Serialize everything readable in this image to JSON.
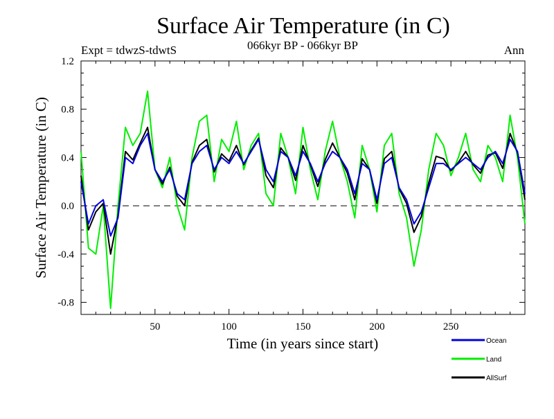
{
  "chart_data": {
    "type": "line",
    "title": "Surface Air Temperature (in C)",
    "left_label": "Expt = tdwzS-tdwtS",
    "center_label": "066kyr BP - 066kyr BP",
    "right_label": "Ann",
    "xlabel": "Time (in years since start)",
    "ylabel": "Surface Air Temperature (in C)",
    "xlim": [
      0,
      300
    ],
    "ylim": [
      -0.9,
      1.2
    ],
    "xticks": [
      50,
      100,
      150,
      200,
      250
    ],
    "xtick_labels": [
      "50",
      "100",
      "150",
      "200",
      "250"
    ],
    "yticks": [
      1.2,
      0.8,
      0.4,
      0.0,
      -0.4,
      -0.8
    ],
    "ytick_labels": [
      "1.2",
      "0.8",
      "0.4",
      "0.0",
      "-0.4",
      "-0.8"
    ],
    "zero_line": true,
    "series": [
      {
        "name": "Land",
        "color": "#00ee00",
        "x": [
          0,
          5,
          10,
          15,
          20,
          25,
          30,
          35,
          40,
          45,
          50,
          55,
          60,
          65,
          70,
          75,
          80,
          85,
          90,
          95,
          100,
          105,
          110,
          115,
          120,
          125,
          130,
          135,
          140,
          145,
          150,
          155,
          160,
          165,
          170,
          175,
          180,
          185,
          190,
          195,
          200,
          205,
          210,
          215,
          220,
          225,
          230,
          235,
          240,
          245,
          250,
          255,
          260,
          265,
          270,
          275,
          280,
          285,
          290,
          295,
          300
        ],
        "values": [
          0.45,
          -0.35,
          -0.4,
          0.0,
          -0.85,
          0.0,
          0.65,
          0.5,
          0.6,
          0.95,
          0.3,
          0.15,
          0.4,
          0.0,
          -0.2,
          0.4,
          0.7,
          0.75,
          0.2,
          0.55,
          0.45,
          0.7,
          0.3,
          0.5,
          0.6,
          0.1,
          0.0,
          0.6,
          0.4,
          0.1,
          0.65,
          0.3,
          0.05,
          0.45,
          0.7,
          0.4,
          0.2,
          -0.1,
          0.5,
          0.3,
          -0.05,
          0.5,
          0.6,
          0.1,
          -0.1,
          -0.5,
          -0.2,
          0.3,
          0.6,
          0.5,
          0.25,
          0.4,
          0.6,
          0.3,
          0.2,
          0.5,
          0.4,
          0.2,
          0.75,
          0.4,
          -0.15
        ]
      },
      {
        "name": "Ocean",
        "color": "#0000dd",
        "x": [
          0,
          5,
          10,
          15,
          20,
          25,
          30,
          35,
          40,
          45,
          50,
          55,
          60,
          65,
          70,
          75,
          80,
          85,
          90,
          95,
          100,
          105,
          110,
          115,
          120,
          125,
          130,
          135,
          140,
          145,
          150,
          155,
          160,
          165,
          170,
          175,
          180,
          185,
          190,
          195,
          200,
          205,
          210,
          215,
          220,
          225,
          230,
          235,
          240,
          245,
          250,
          255,
          260,
          265,
          270,
          275,
          280,
          285,
          290,
          295,
          300
        ],
        "values": [
          0.2,
          -0.15,
          0.0,
          0.05,
          -0.25,
          -0.1,
          0.4,
          0.35,
          0.5,
          0.6,
          0.3,
          0.2,
          0.3,
          0.1,
          0.05,
          0.35,
          0.45,
          0.5,
          0.3,
          0.4,
          0.35,
          0.45,
          0.35,
          0.45,
          0.55,
          0.3,
          0.2,
          0.45,
          0.4,
          0.25,
          0.45,
          0.35,
          0.2,
          0.35,
          0.45,
          0.4,
          0.3,
          0.1,
          0.35,
          0.3,
          0.05,
          0.35,
          0.4,
          0.15,
          0.05,
          -0.15,
          -0.05,
          0.15,
          0.35,
          0.35,
          0.3,
          0.35,
          0.4,
          0.35,
          0.3,
          0.4,
          0.45,
          0.35,
          0.55,
          0.45,
          0.1
        ]
      },
      {
        "name": "AllSurf",
        "color": "#000000",
        "x": [
          0,
          5,
          10,
          15,
          20,
          25,
          30,
          35,
          40,
          45,
          50,
          55,
          60,
          65,
          70,
          75,
          80,
          85,
          90,
          95,
          100,
          105,
          110,
          115,
          120,
          125,
          130,
          135,
          140,
          145,
          150,
          155,
          160,
          165,
          170,
          175,
          180,
          185,
          190,
          195,
          200,
          205,
          210,
          215,
          220,
          225,
          230,
          235,
          240,
          245,
          250,
          255,
          260,
          265,
          270,
          275,
          280,
          285,
          290,
          295,
          300
        ],
        "values": [
          0.25,
          -0.2,
          -0.05,
          0.02,
          -0.4,
          -0.08,
          0.45,
          0.38,
          0.52,
          0.65,
          0.3,
          0.18,
          0.32,
          0.08,
          0.0,
          0.36,
          0.5,
          0.55,
          0.28,
          0.43,
          0.37,
          0.5,
          0.34,
          0.46,
          0.56,
          0.25,
          0.15,
          0.48,
          0.4,
          0.21,
          0.5,
          0.34,
          0.16,
          0.38,
          0.52,
          0.4,
          0.27,
          0.05,
          0.39,
          0.3,
          0.02,
          0.39,
          0.45,
          0.14,
          0.02,
          -0.22,
          -0.09,
          0.19,
          0.41,
          0.39,
          0.29,
          0.36,
          0.45,
          0.34,
          0.27,
          0.42,
          0.44,
          0.31,
          0.6,
          0.44,
          0.05
        ]
      }
    ],
    "legend_position": "bottom-right"
  }
}
